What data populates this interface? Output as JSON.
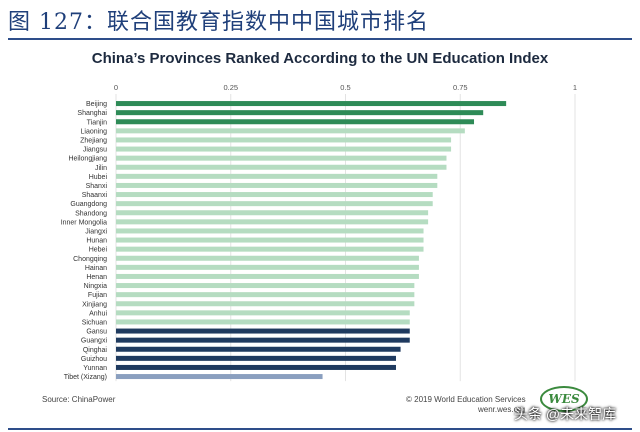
{
  "figure_title": "图 127：联合国教育指数中中国城市排名",
  "chart_data": {
    "type": "bar",
    "orientation": "horizontal",
    "title": "China’s Provinces Ranked According to the UN Education Index",
    "xlabel": "",
    "ylabel": "",
    "xlim": [
      0,
      1
    ],
    "x_ticks": [
      "0",
      "0.25",
      "0.5",
      "0.75",
      "1"
    ],
    "grid": true,
    "categories": [
      "Beijing",
      "Shanghai",
      "Tianjin",
      "Liaoning",
      "Zhejiang",
      "Jiangsu",
      "Heilongjiang",
      "Jilin",
      "Hubei",
      "Shanxi",
      "Shaanxi",
      "Guangdong",
      "Shandong",
      "Inner Mongolia",
      "Jiangxi",
      "Hunan",
      "Hebei",
      "Chongqing",
      "Hainan",
      "Henan",
      "Ningxia",
      "Fujian",
      "Xinjiang",
      "Anhui",
      "Sichuan",
      "Gansu",
      "Guangxi",
      "Qinghai",
      "Guizhou",
      "Yunnan",
      "Tibet (Xizang)"
    ],
    "values": [
      0.85,
      0.8,
      0.78,
      0.76,
      0.73,
      0.73,
      0.72,
      0.72,
      0.7,
      0.7,
      0.69,
      0.69,
      0.68,
      0.68,
      0.67,
      0.67,
      0.67,
      0.66,
      0.66,
      0.66,
      0.65,
      0.65,
      0.65,
      0.64,
      0.64,
      0.64,
      0.64,
      0.62,
      0.61,
      0.61,
      0.45
    ],
    "bar_colors": [
      "#2e8b57",
      "#2e8b57",
      "#2e8b57",
      "#b5dcc1",
      "#b5dcc1",
      "#b5dcc1",
      "#b5dcc1",
      "#b5dcc1",
      "#b5dcc1",
      "#b5dcc1",
      "#b5dcc1",
      "#b5dcc1",
      "#b5dcc1",
      "#b5dcc1",
      "#b5dcc1",
      "#b5dcc1",
      "#b5dcc1",
      "#b5dcc1",
      "#b5dcc1",
      "#b5dcc1",
      "#b5dcc1",
      "#b5dcc1",
      "#b5dcc1",
      "#b5dcc1",
      "#b5dcc1",
      "#1f3a5f",
      "#1f3a5f",
      "#1f3a5f",
      "#1f3a5f",
      "#1f3a5f",
      "#8a9fbf"
    ]
  },
  "footer": {
    "source": "Source: ChinaPower",
    "copyright": "© 2019 World Education Services",
    "url": "wenr.wes.org",
    "logo_text": "WES",
    "watermark": "头条 @未来智库"
  }
}
